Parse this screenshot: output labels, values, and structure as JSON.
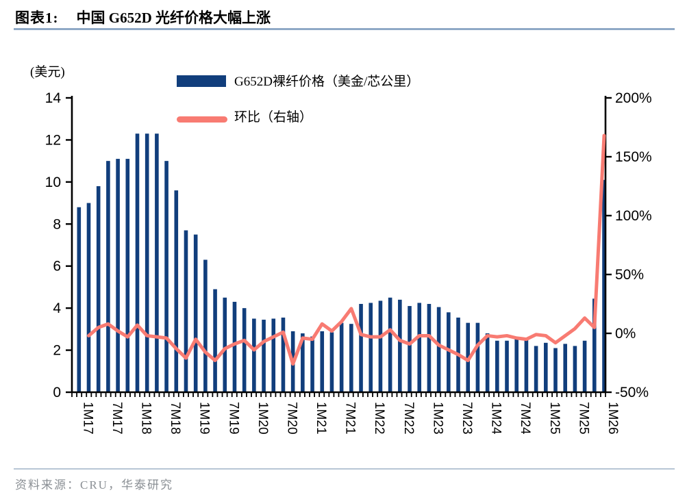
{
  "header": {
    "chart_label": "图表1:",
    "title": "中国 G652D 光纤价格大幅上涨"
  },
  "footer": {
    "source": "资料来源：CRU，华泰研究"
  },
  "colors": {
    "bar": "#113e7c",
    "line": "#f87b72",
    "axis": "#000000"
  },
  "chart_data": {
    "type": "combo",
    "title": "中国 G652D 光纤价格大幅上涨",
    "unit_label": "(美元)",
    "legend_position": "top",
    "grid": false,
    "legend": [
      {
        "type": "bar",
        "label": "G652D裸纤价格（美金/芯公里）",
        "color": "#113e7c"
      },
      {
        "type": "line",
        "label": "环比（右轴）",
        "color": "#f87b72"
      }
    ],
    "categories": [
      "1M17",
      "3M17",
      "5M17",
      "7M17",
      "9M17",
      "11M17",
      "1M18",
      "3M18",
      "5M18",
      "7M18",
      "9M18",
      "11M18",
      "1M19",
      "3M19",
      "5M19",
      "7M19",
      "9M19",
      "11M19",
      "1M20",
      "3M20",
      "5M20",
      "7M20",
      "9M20",
      "11M20",
      "1M21",
      "3M21",
      "5M21",
      "7M21",
      "9M21",
      "11M21",
      "1M22",
      "3M22",
      "5M22",
      "7M22",
      "9M22",
      "11M22",
      "1M23",
      "3M23",
      "5M23",
      "7M23",
      "9M23",
      "11M23",
      "1M24",
      "3M24",
      "5M24",
      "7M24",
      "9M24",
      "11M24",
      "1M25",
      "3M25",
      "5M25",
      "7M25",
      "9M25",
      "11M25",
      "1M26"
    ],
    "x_tick_labels": [
      "1M17",
      "7M17",
      "1M18",
      "7M18",
      "1M19",
      "7M19",
      "1M20",
      "7M20",
      "1M21",
      "7M21",
      "1M22",
      "7M22",
      "1M23",
      "7M23",
      "1M24",
      "7M24",
      "1M25",
      "7M25",
      "1M26"
    ],
    "series": [
      {
        "name": "G652D裸纤价格（美金/芯公里）",
        "type": "bar",
        "axis": "left",
        "values": [
          8.8,
          9.0,
          9.8,
          11.0,
          11.1,
          11.1,
          12.3,
          12.3,
          12.3,
          11.0,
          9.6,
          7.7,
          7.5,
          6.3,
          4.9,
          4.5,
          4.3,
          4.0,
          3.5,
          3.45,
          3.5,
          3.55,
          2.9,
          2.8,
          2.65,
          2.9,
          2.85,
          3.3,
          3.25,
          4.2,
          4.25,
          4.35,
          4.5,
          4.4,
          4.1,
          4.25,
          4.2,
          4.05,
          3.8,
          3.55,
          3.3,
          3.3,
          2.8,
          2.45,
          2.45,
          2.55,
          2.5,
          2.2,
          2.35,
          2.1,
          2.3,
          2.2,
          2.45,
          4.45,
          10.1
        ]
      },
      {
        "name": "环比（右轴）",
        "type": "line",
        "axis": "right",
        "unit": "%",
        "values": [
          null,
          -2,
          5,
          8,
          2,
          -3,
          7,
          -2,
          -3,
          -4,
          -13,
          -21,
          -5,
          -16,
          -23,
          -13,
          -9,
          -6,
          -14,
          -7,
          -3,
          1,
          -26,
          -4,
          -5,
          8,
          2,
          10,
          21,
          -1,
          -3,
          -3,
          3,
          -6,
          -9,
          -2,
          -2,
          -10,
          -14,
          -18,
          -23,
          -10,
          -2,
          -3,
          -2,
          -4,
          -5,
          -1,
          -2,
          -8,
          -2,
          4,
          13,
          5,
          168
        ]
      }
    ],
    "left_axis": {
      "unit": "美元",
      "ticks": [
        0,
        2,
        4,
        6,
        8,
        10,
        12,
        14
      ],
      "range": [
        0,
        14
      ]
    },
    "right_axis": {
      "unit": "%",
      "ticks": [
        "-50%",
        "0%",
        "50%",
        "100%",
        "150%",
        "200%"
      ],
      "tick_values": [
        -50,
        0,
        50,
        100,
        150,
        200
      ],
      "range": [
        -50,
        200
      ]
    }
  }
}
